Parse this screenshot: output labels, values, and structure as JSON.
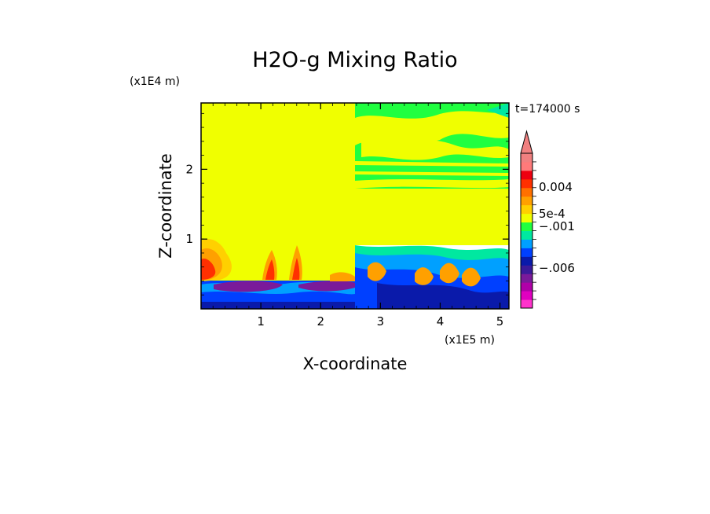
{
  "chart_data": {
    "type": "heatmap",
    "title": "H2O-g Mixing Ratio",
    "xlabel": "X-coordinate",
    "ylabel": "Z-coordinate",
    "x_scale_label": "(x1E5 m)",
    "y_scale_label": "(x1E4 m)",
    "time_label": "t=174000 s",
    "xlim": [
      0,
      5.15
    ],
    "ylim": [
      0,
      2.95
    ],
    "x_ticks": [
      1,
      2,
      3,
      4,
      5
    ],
    "x_tick_labels": [
      "1",
      "2",
      "3",
      "4",
      "5"
    ],
    "y_ticks": [
      1,
      2
    ],
    "y_tick_labels": [
      "1",
      "2"
    ],
    "colorbar": {
      "colors": [
        "#ff33cc",
        "#e000c0",
        "#b000a8",
        "#7a1a9a",
        "#3b1a9a",
        "#0a1aaa",
        "#0040ff",
        "#00a0ff",
        "#00e8a0",
        "#20ff40",
        "#f0ff00",
        "#ffd000",
        "#ffa000",
        "#ff7000",
        "#ff3000",
        "#ee0010",
        "#ff7a7a",
        "#f08080"
      ],
      "tick_labels": [
        "0.004",
        "5e-4",
        "−.001",
        "−.006"
      ],
      "extend": "max-arrow"
    },
    "regions": [
      {
        "color": "#f0ff00",
        "x": [
          0,
          2.55
        ],
        "z": [
          0.45,
          2.95
        ]
      },
      {
        "color": "#f0ff00",
        "x": [
          2.55,
          5.15
        ],
        "z": [
          0.9,
          1.7
        ]
      },
      {
        "color": "#20ff40",
        "x": [
          2.55,
          5.15
        ],
        "z": [
          1.7,
          2.95
        ]
      },
      {
        "color": "#0040ff",
        "x": [
          0,
          5.15
        ],
        "z": [
          0,
          0.45
        ]
      },
      {
        "color": "#7a1a9a",
        "x": [
          0.2,
          2.55
        ],
        "z": [
          0.2,
          0.4
        ]
      },
      {
        "color": "#00a0ff",
        "x": [
          2.55,
          5.15
        ],
        "z": [
          0.45,
          0.9
        ]
      }
    ]
  }
}
